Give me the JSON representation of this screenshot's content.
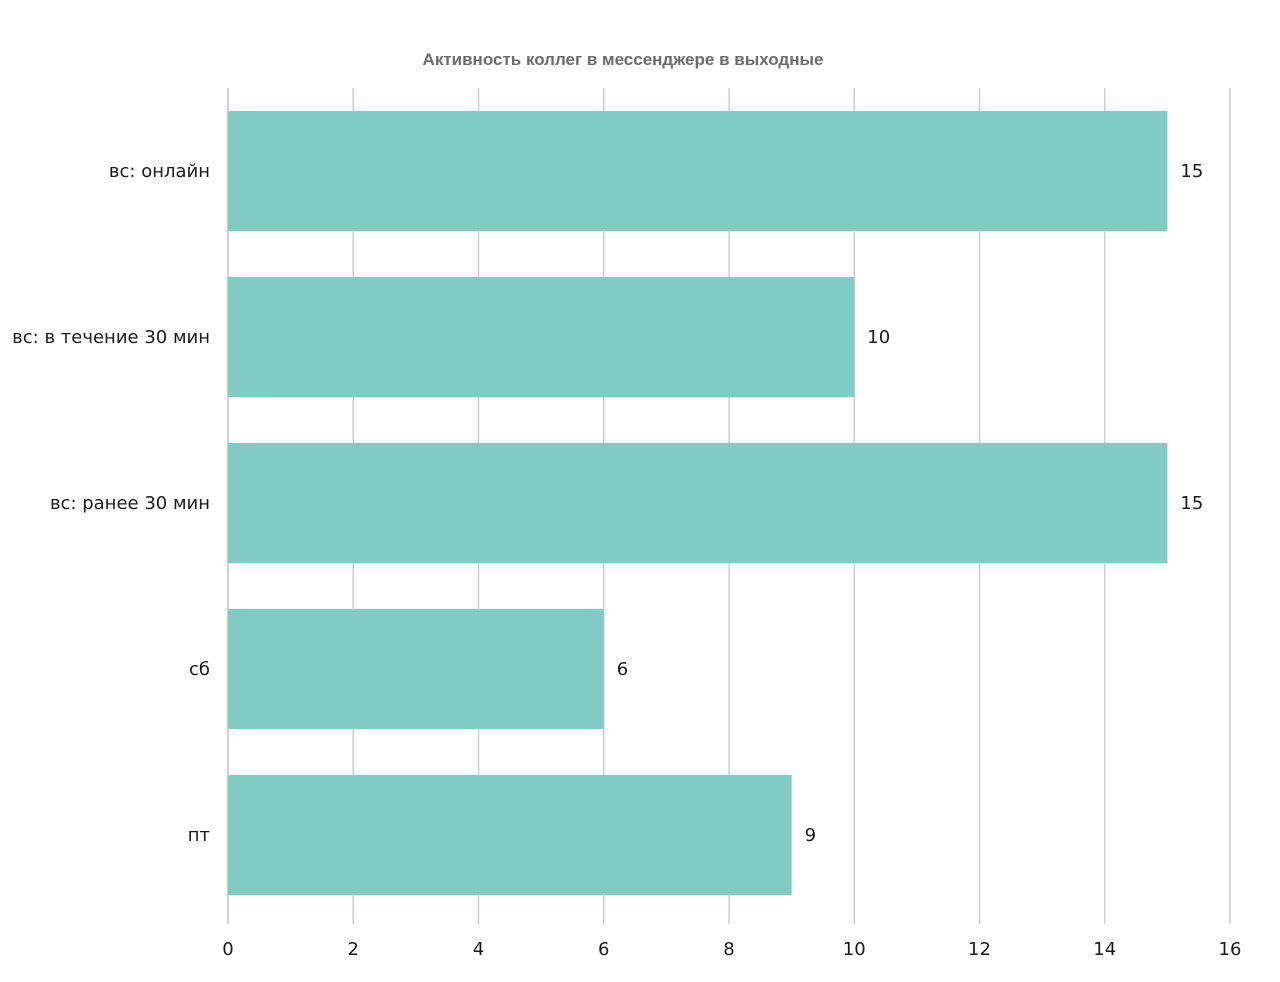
{
  "chart_data": {
    "type": "bar",
    "orientation": "horizontal",
    "title": "Активность коллег в мессенджере в выходные",
    "categories": [
      "вс: онлайн",
      "вс: в течение 30 мин",
      "вс: ранее 30 мин",
      "сб",
      "пт"
    ],
    "values": [
      15,
      10,
      15,
      6,
      9
    ],
    "value_labels": [
      "15",
      "10",
      "15",
      "6",
      "9"
    ],
    "xlim": [
      0,
      16
    ],
    "x_ticks": [
      "0",
      "2",
      "4",
      "6",
      "8",
      "10",
      "12",
      "14",
      "16"
    ],
    "xlabel": "",
    "ylabel": "",
    "grid": true,
    "legend": "none",
    "bar_color": "#82cbc3"
  }
}
